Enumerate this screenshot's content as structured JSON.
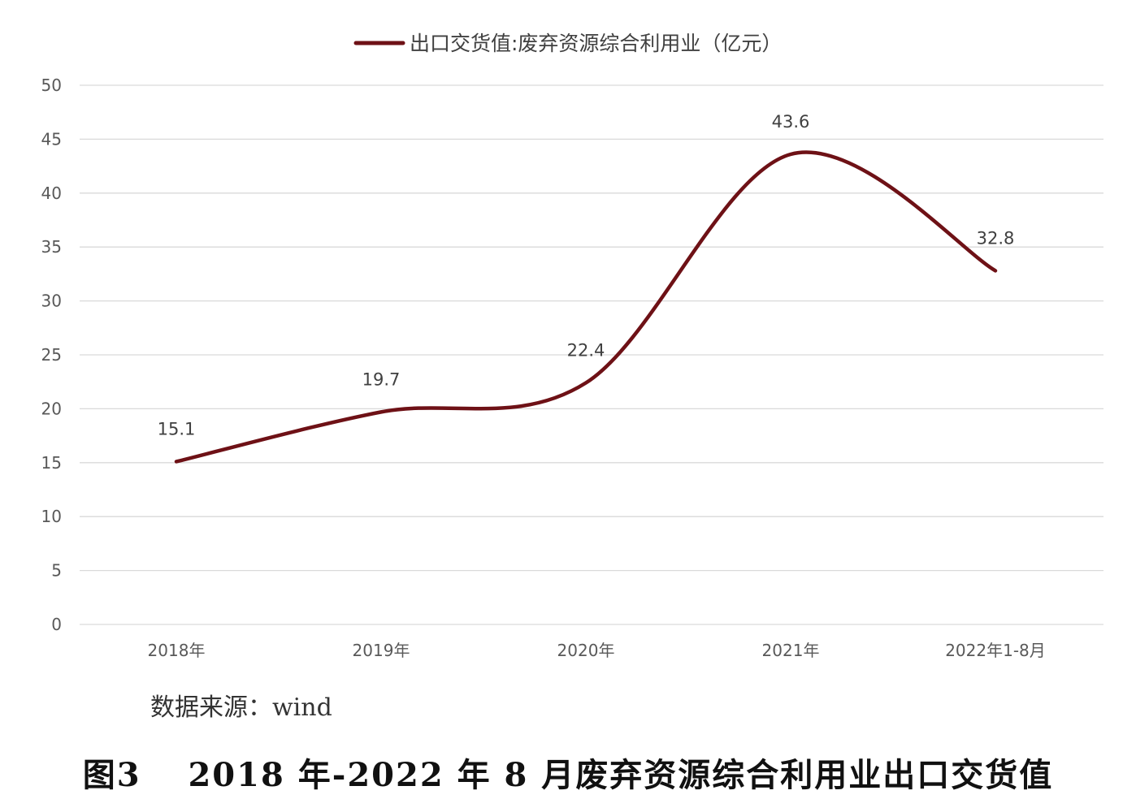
{
  "chart_data": {
    "type": "line",
    "title": "",
    "categories": [
      "2018年",
      "2019年",
      "2020年",
      "2021年",
      "2022年1-8月"
    ],
    "series": [
      {
        "name": "出口交货值:废弃资源综合利用业（亿元）",
        "values": [
          15.1,
          19.7,
          22.4,
          43.6,
          32.8
        ],
        "color": "#6e1116"
      }
    ],
    "data_labels": [
      "15.1",
      "19.7",
      "22.4",
      "43.6",
      "32.8"
    ],
    "ylim": [
      0,
      50
    ],
    "yticks": [
      0,
      5,
      10,
      15,
      20,
      25,
      30,
      35,
      40,
      45,
      50
    ],
    "grid": true,
    "smooth": true,
    "legend_position": "top",
    "xlabel": "",
    "ylabel": ""
  },
  "source_note": "数据来源：wind",
  "caption": "图3　 2018 年-2022 年 8 月废弃资源综合利用业出口交货值"
}
